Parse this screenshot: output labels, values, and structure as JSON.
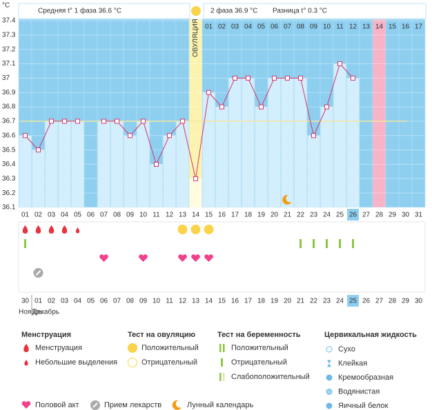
{
  "chart_data": {
    "type": "line",
    "unit": "°C",
    "phase1": "Средняя t° 1 фаза 36.6 °C",
    "phase2": "2 фаза 36.9 °C",
    "difference": "Разница t° 0.3 °C",
    "ovulation_label": "ОВУЛЯЦИЯ",
    "ovulation_day": 13,
    "marked_day": 27,
    "today": 25,
    "categories": [
      "01",
      "02",
      "03",
      "04",
      "05",
      "06",
      "07",
      "08",
      "09",
      "10",
      "11",
      "12",
      "13",
      "14",
      "15",
      "16",
      "17",
      "18",
      "19",
      "20",
      "21",
      "22",
      "23",
      "24",
      "25",
      "26",
      "27",
      "28",
      "29",
      "30",
      "31"
    ],
    "phase_days": [
      null,
      null,
      null,
      null,
      null,
      null,
      null,
      null,
      null,
      null,
      null,
      null,
      null,
      null,
      "01",
      "02",
      "03",
      "04",
      "05",
      "06",
      "07",
      "08",
      "09",
      "10",
      "11",
      "12",
      "13",
      "14",
      "15",
      "16",
      "17"
    ],
    "values": [
      36.6,
      36.5,
      36.7,
      36.7,
      36.7,
      null,
      36.7,
      36.7,
      36.6,
      36.7,
      36.4,
      36.6,
      36.7,
      36.3,
      36.9,
      36.8,
      37,
      37,
      36.8,
      37,
      37,
      37,
      36.6,
      36.8,
      37.1,
      37,
      null,
      null,
      null,
      null,
      null
    ],
    "color": "#d6336c",
    "coverline": 36.7,
    "ylim": [
      36.1,
      37.4
    ],
    "yticks": [
      36.1,
      36.2,
      36.3,
      36.4,
      36.5,
      36.6,
      36.7,
      36.8,
      36.9,
      37,
      37.1,
      37.2,
      37.3,
      37.4
    ],
    "dates": [
      "30",
      "01",
      "02",
      "03",
      "04",
      "05",
      "06",
      "07",
      "08",
      "09",
      "10",
      "11",
      "12",
      "13",
      "14",
      "15",
      "16",
      "17",
      "18",
      "19",
      "20",
      "21",
      "22",
      "23",
      "24",
      "25",
      "26",
      "27",
      "28",
      "29",
      "30"
    ],
    "weekend": [
      5,
      6,
      12,
      13,
      19,
      20,
      26,
      27
    ],
    "months": [
      "Ноябрь",
      "Декабрь"
    ],
    "markers": {
      "menstruation": [
        0,
        1,
        2,
        3
      ],
      "light": [
        4
      ],
      "ovulation_positive": [
        12,
        13,
        14
      ],
      "pregnancy_negative": [
        0,
        21,
        22,
        23,
        24,
        25
      ],
      "intercourse": [
        6,
        9,
        12,
        13,
        14
      ],
      "medication": [
        1
      ],
      "moon": [
        20
      ]
    }
  },
  "legend": {
    "menstruation": {
      "title": "Менструация",
      "items": [
        "Менструация",
        "Небольшие выделения"
      ]
    },
    "ovulation_test": {
      "title": "Тест на овуляцию",
      "items": [
        "Положительный",
        "Отрицательный"
      ]
    },
    "pregnancy_test": {
      "title": "Тест на беременность",
      "items": [
        "Положительный",
        "Отрицательный",
        "Слабоположительный"
      ]
    },
    "cervical": {
      "title": "Цервикальная жидкость",
      "items": [
        "Сухо",
        "Клейкая",
        "Кремообразная",
        "Водянистая",
        "Яичный белок"
      ]
    },
    "other": [
      "Половой акт",
      "Прием лекарств",
      "Лунный календарь"
    ]
  }
}
